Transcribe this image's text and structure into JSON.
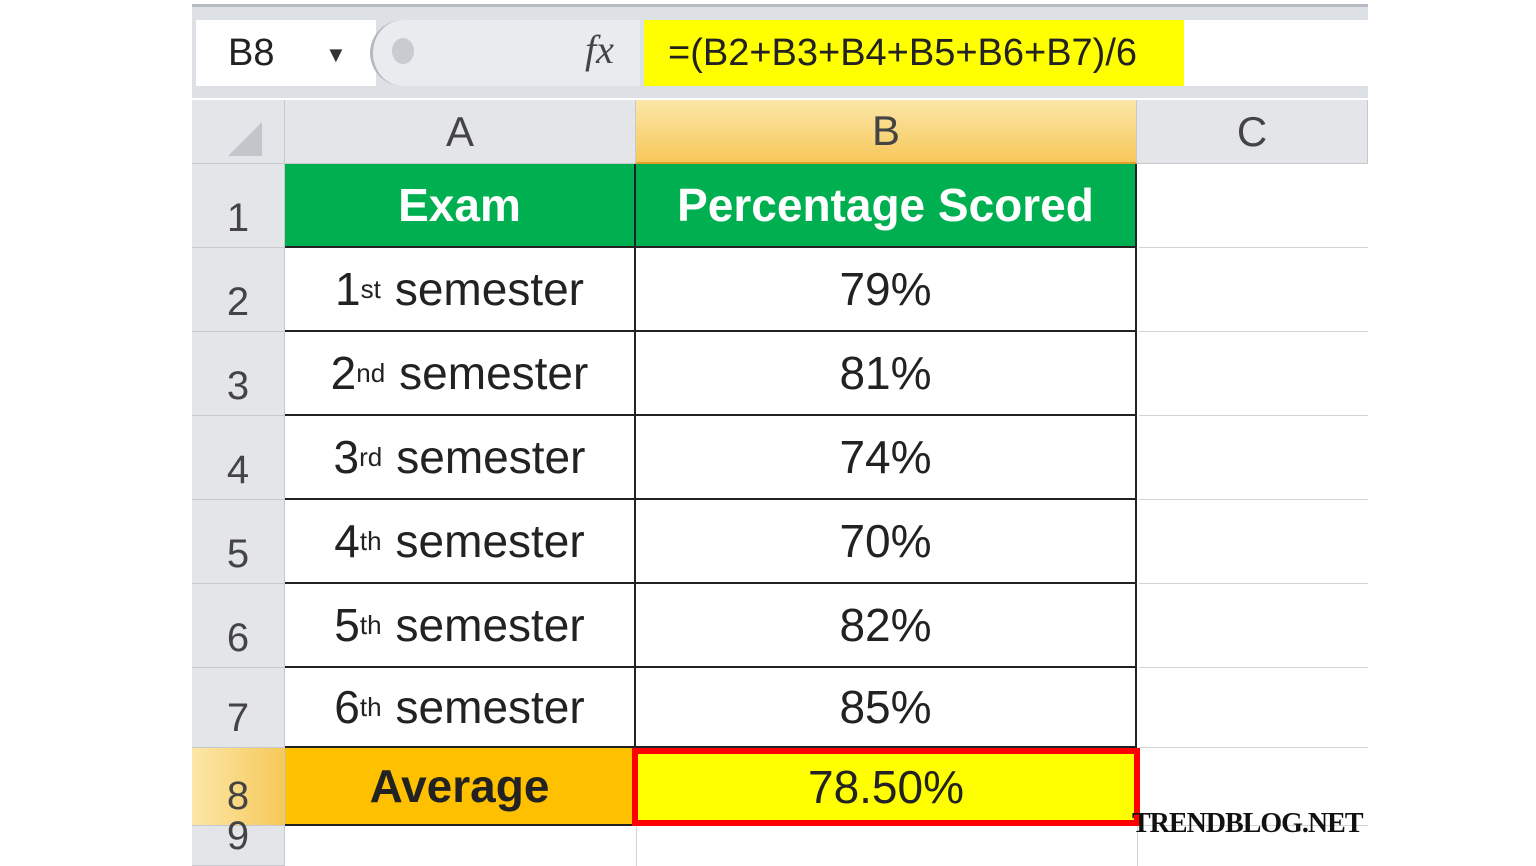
{
  "formula_bar": {
    "name_box": "B8",
    "fx_label": "fx",
    "formula": "=(B2+B3+B4+B5+B6+B7)/6"
  },
  "columns": [
    "A",
    "B",
    "C"
  ],
  "rows": [
    "1",
    "2",
    "3",
    "4",
    "5",
    "6",
    "7",
    "8",
    "9"
  ],
  "headers": {
    "exam": "Exam",
    "percentage": "Percentage Scored"
  },
  "data": [
    {
      "num": "1",
      "sup": "st",
      "label": "semester",
      "value": "79%"
    },
    {
      "num": "2",
      "sup": "nd",
      "label": "semester",
      "value": "81%"
    },
    {
      "num": "3",
      "sup": "rd",
      "label": "semester",
      "value": "74%"
    },
    {
      "num": "4",
      "sup": "th",
      "label": "semester",
      "value": "70%"
    },
    {
      "num": "5",
      "sup": "th",
      "label": "semester",
      "value": "82%"
    },
    {
      "num": "6",
      "sup": "th",
      "label": "semester",
      "value": "85%"
    }
  ],
  "average": {
    "label": "Average",
    "value": "78.50%"
  },
  "watermark": "TRENDBLOG.NET",
  "colors": {
    "header_green": "#00b050",
    "average_orange": "#ffc000",
    "selected_yellow": "#ffff00",
    "selection_border": "#ff0000"
  }
}
